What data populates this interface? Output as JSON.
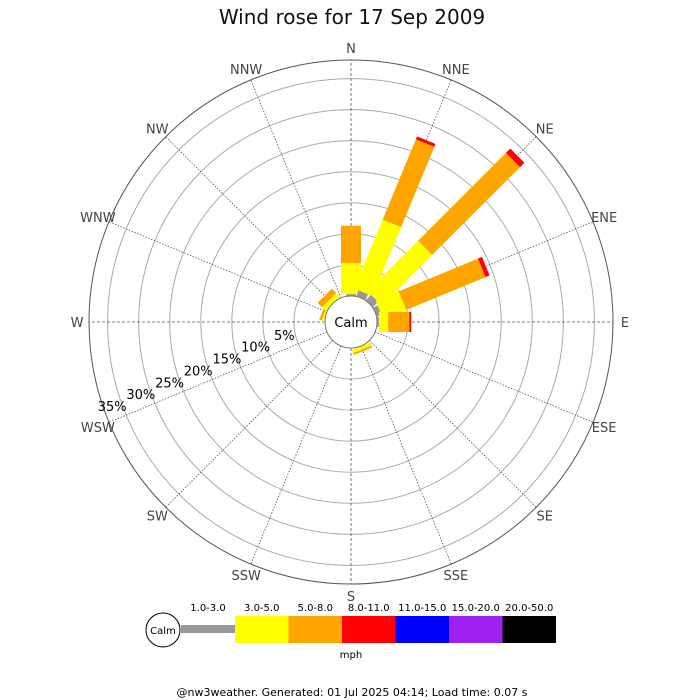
{
  "chart_data": {
    "type": "wind-rose",
    "title": "Wind rose for 17 Sep 2009",
    "directions": [
      "N",
      "NNE",
      "NE",
      "ENE",
      "E",
      "ESE",
      "SE",
      "SSE",
      "S",
      "SSW",
      "SW",
      "WSW",
      "W",
      "WNW",
      "NW",
      "NNW"
    ],
    "ring_labels": [
      "5%",
      "10%",
      "15%",
      "20%",
      "25%",
      "30%",
      "35%"
    ],
    "ring_values": [
      5,
      10,
      15,
      20,
      25,
      30,
      35
    ],
    "rmax": 38,
    "calm_label": "Calm",
    "speed_bins": [
      {
        "label": "1.0-3.0",
        "color": "#999999"
      },
      {
        "label": "3.0-5.0",
        "color": "#ffff00"
      },
      {
        "label": "5.0-8.0",
        "color": "#ffa500"
      },
      {
        "label": "8.0-11.0",
        "color": "#ff0000"
      },
      {
        "label": "11.0-15.0",
        "color": "#0000ff"
      },
      {
        "label": "15.0-20.0",
        "color": "#a020f0"
      },
      {
        "label": "20.0-50.0",
        "color": "#000000"
      }
    ],
    "units": "mph",
    "series": [
      {
        "direction": "N",
        "values": [
          0.3,
          5.0,
          6.0,
          0,
          0,
          0,
          0
        ]
      },
      {
        "direction": "NNE",
        "values": [
          1.0,
          12.0,
          14.0,
          0.5,
          0,
          0,
          0
        ]
      },
      {
        "direction": "NE",
        "values": [
          1.2,
          11.5,
          20.0,
          1.0,
          0,
          0,
          0
        ]
      },
      {
        "direction": "ENE",
        "values": [
          0.8,
          4.0,
          13.8,
          0.7,
          0,
          0,
          0
        ]
      },
      {
        "direction": "E",
        "values": [
          0.3,
          1.5,
          3.4,
          0.3,
          0,
          0,
          0
        ]
      },
      {
        "direction": "ESE",
        "values": [
          0,
          0,
          0,
          0,
          0,
          0,
          0
        ]
      },
      {
        "direction": "SE",
        "values": [
          0,
          0,
          0,
          0,
          0,
          0,
          0
        ]
      },
      {
        "direction": "SSE",
        "values": [
          0,
          0.6,
          0.3,
          0,
          0,
          0,
          0
        ]
      },
      {
        "direction": "S",
        "values": [
          0,
          0,
          0,
          0,
          0,
          0,
          0
        ]
      },
      {
        "direction": "SSW",
        "values": [
          0,
          0,
          0,
          0,
          0,
          0,
          0
        ]
      },
      {
        "direction": "SW",
        "values": [
          0,
          0,
          0,
          0,
          0,
          0,
          0
        ]
      },
      {
        "direction": "WSW",
        "values": [
          0,
          0,
          0,
          0,
          0,
          0,
          0
        ]
      },
      {
        "direction": "W",
        "values": [
          0,
          0,
          0,
          0,
          0,
          0,
          0
        ]
      },
      {
        "direction": "WNW",
        "values": [
          0,
          0.3,
          0.4,
          0,
          0,
          0,
          0
        ]
      },
      {
        "direction": "NW",
        "values": [
          0,
          0.8,
          1.0,
          0,
          0,
          0,
          0
        ]
      },
      {
        "direction": "NNW",
        "values": [
          0,
          0,
          0,
          0,
          0,
          0,
          0
        ]
      }
    ]
  },
  "footer": "@nw3weather. Generated: 01 Jul 2025 04:14; Load time: 0.07 s"
}
